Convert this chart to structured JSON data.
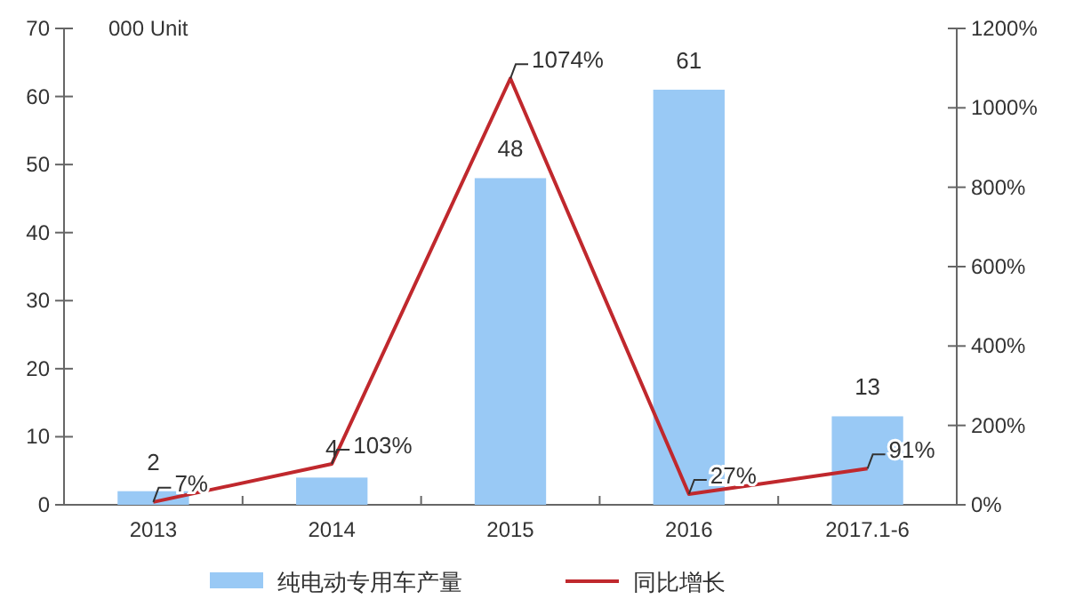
{
  "chart_data": {
    "type": "bar",
    "ylabel": "000 Unit",
    "categories": [
      "2013",
      "2014",
      "2015",
      "2016",
      "2017.1-6"
    ],
    "series": [
      {
        "name": "纯电动专用车产量",
        "color": "#99c9f5",
        "values": [
          2,
          4,
          48,
          61,
          13
        ],
        "value_labels": [
          "2",
          "4",
          "48",
          "61",
          "13"
        ]
      },
      {
        "name": "同比增长",
        "type": "line",
        "axis": "y2",
        "color": "#c0282d",
        "values": [
          7,
          103,
          1074,
          27,
          91
        ],
        "value_labels": [
          "7%",
          "103%",
          "1074%",
          "27%",
          "91%"
        ]
      }
    ],
    "ylim": [
      0,
      70
    ],
    "yticks": [
      0,
      10,
      20,
      30,
      40,
      50,
      60,
      70
    ],
    "y2lim": [
      0,
      1200
    ],
    "y2ticks": [
      {
        "value": 0,
        "label": "0%"
      },
      {
        "value": 200,
        "label": "200%"
      },
      {
        "value": 400,
        "label": "400%"
      },
      {
        "value": 600,
        "label": "600%"
      },
      {
        "value": 800,
        "label": "800%"
      },
      {
        "value": 1000,
        "label": "1000%"
      },
      {
        "value": 1200,
        "label": "1200%"
      }
    ],
    "grid": false,
    "legend": "bottom",
    "marker": "none",
    "line_style": "solid"
  }
}
